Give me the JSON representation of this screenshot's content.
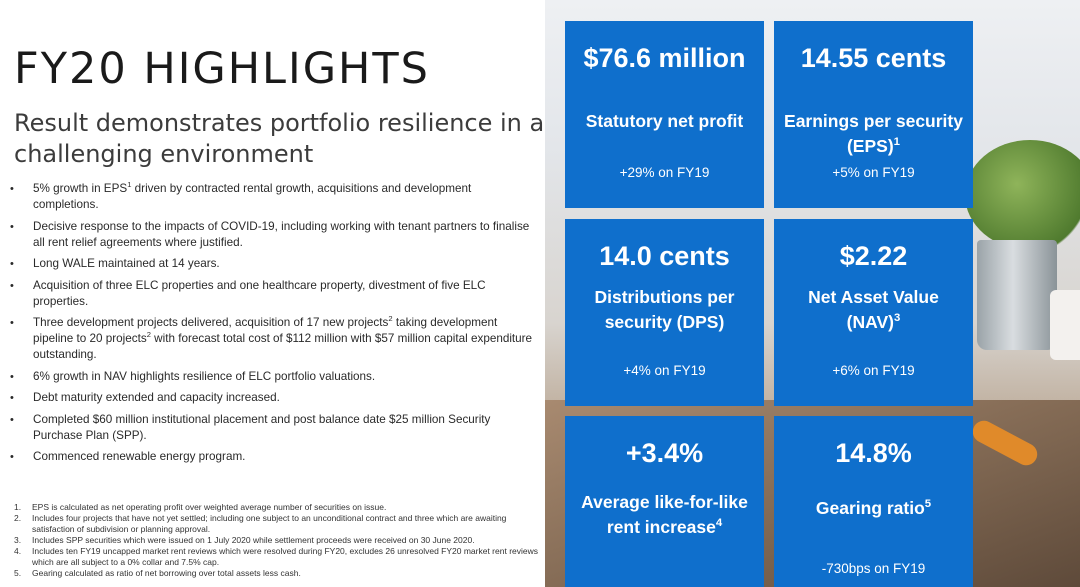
{
  "title": "FY20 HIGHLIGHTS",
  "subtitle": "Result demonstrates portfolio resilience in a challenging environment",
  "bullets": [
    {
      "pre": "5% growth in EPS",
      "sup": "1",
      "post": " driven by contracted rental growth, acquisitions and development completions."
    },
    {
      "pre": "Decisive response to the impacts of COVID-19, including working with tenant partners to finalise all rent relief agreements where justified."
    },
    {
      "pre": "Long WALE maintained at 14 years."
    },
    {
      "pre": "Acquisition of three ELC properties and one healthcare property, divestment of five ELC properties."
    },
    {
      "pre": "Three development projects delivered, acquisition of 17 new projects",
      "sup": "2",
      "post": " taking development pipeline to 20 projects",
      "sup2": "2",
      "post2": " with forecast total cost of $112 million with $57 million capital expenditure outstanding."
    },
    {
      "pre": "6% growth in NAV highlights resilience of ELC portfolio valuations."
    },
    {
      "pre": "Debt maturity extended and capacity increased."
    },
    {
      "pre": "Completed $60 million institutional placement and post balance date $25 million Security Purchase Plan (SPP)."
    },
    {
      "pre": "Commenced renewable energy program."
    }
  ],
  "footnotes": [
    {
      "num": "1.",
      "text": "EPS is calculated as net operating profit over weighted average number of securities on issue."
    },
    {
      "num": "2.",
      "text": "Includes four projects that have not yet settled; including one subject to an unconditional contract and three which are awaiting satisfaction of subdivision or planning approval."
    },
    {
      "num": "3.",
      "text": "Includes SPP securities which were issued on 1 July 2020 while settlement proceeds were received on 30 June 2020."
    },
    {
      "num": "4.",
      "text": "Includes ten FY19 uncapped market rent reviews which were resolved during FY20, excludes 26 unresolved FY20 market rent reviews which are all subject to a 0% collar and 7.5% cap."
    },
    {
      "num": "5.",
      "text": "Gearing calculated as ratio of net borrowing over total assets less cash."
    }
  ],
  "tiles": [
    {
      "value": "$76.6 million",
      "label": "Statutory net profit",
      "sup": "",
      "change": "+29% on FY19"
    },
    {
      "value": "14.55 cents",
      "label": "Earnings per security (EPS)",
      "sup": "1",
      "change": "+5% on FY19"
    },
    {
      "value": "14.0 cents",
      "label": "Distributions per security (DPS)",
      "sup": "",
      "change": "+4% on FY19"
    },
    {
      "value": "$2.22",
      "label": "Net Asset Value (NAV)",
      "sup": "3",
      "change": "+6% on FY19"
    },
    {
      "value": "+3.4%",
      "label": "Average like-for-like rent increase",
      "sup": "4",
      "change": ""
    },
    {
      "value": "14.8%",
      "label": "Gearing ratio",
      "sup": "5",
      "change": "-730bps on FY19"
    }
  ],
  "colors": {
    "tile_blue": "#0f6fcc"
  }
}
